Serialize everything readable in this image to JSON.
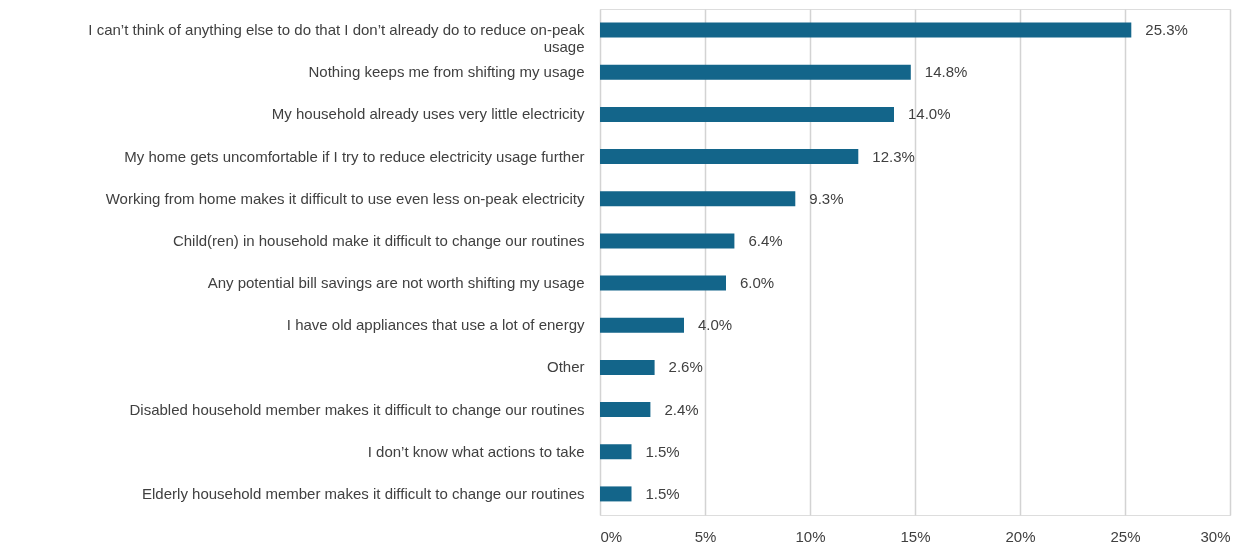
{
  "chart_data": {
    "type": "bar",
    "orientation": "horizontal",
    "categories": [
      "I can’t think of anything else to do that I don’t already do to reduce on-peak usage",
      "Nothing keeps me from shifting my usage",
      "My household already uses very little electricity",
      "My home gets uncomfortable if I try to reduce electricity usage further",
      "Working from home makes it difficult to use even less on-peak electricity",
      "Child(ren) in household make it difficult to change our routines",
      "Any potential bill savings are not worth shifting my usage",
      "I have old appliances that use a lot of energy",
      "Other",
      "Disabled household member makes it difficult to change our routines",
      "I don’t know what actions to take",
      "Elderly household member makes it difficult to change our routines"
    ],
    "values": [
      25.3,
      14.8,
      14.0,
      12.3,
      9.3,
      6.4,
      6.0,
      4.0,
      2.6,
      2.4,
      1.5,
      1.5
    ],
    "value_labels": [
      "25.3%",
      "14.8%",
      "14.0%",
      "12.3%",
      "9.3%",
      "6.4%",
      "6.0%",
      "4.0%",
      "2.6%",
      "2.4%",
      "1.5%",
      "1.5%"
    ],
    "color": "#13658a",
    "xlim": [
      0,
      30
    ],
    "xticks": [
      {
        "value": 0,
        "label": "0%"
      },
      {
        "value": 5,
        "label": "5%"
      },
      {
        "value": 10,
        "label": "10%"
      },
      {
        "value": 15,
        "label": "15%"
      },
      {
        "value": 20,
        "label": "20%"
      },
      {
        "value": 25,
        "label": "25%"
      },
      {
        "value": 30,
        "label": "30%"
      }
    ],
    "grid": "x"
  }
}
